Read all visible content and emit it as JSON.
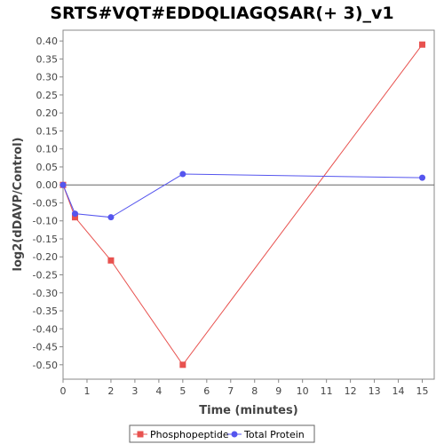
{
  "chart_data": {
    "type": "line",
    "title": "SRTS#VQT#EDDQLIAGQSAR(+ 3)_v1",
    "xlabel": "Time (minutes)",
    "ylabel": "log2(dDAVP/Control)",
    "xlim": [
      0,
      15.5
    ],
    "ylim": [
      -0.54,
      0.43
    ],
    "xticks": [
      0,
      1,
      2,
      3,
      4,
      5,
      6,
      7,
      8,
      9,
      10,
      11,
      12,
      13,
      14,
      15
    ],
    "yticks": [
      0.4,
      0.35,
      0.3,
      0.25,
      0.2,
      0.15,
      0.1,
      0.05,
      0.0,
      -0.05,
      -0.1,
      -0.15,
      -0.2,
      -0.25,
      -0.3,
      -0.35,
      -0.4,
      -0.45,
      -0.5
    ],
    "grid": false,
    "legend_position": "bottom",
    "series": [
      {
        "name": "Phosphopeptide",
        "color": "#e8524f",
        "marker": "square",
        "x": [
          0,
          0.5,
          2,
          5,
          15
        ],
        "y": [
          0.0,
          -0.09,
          -0.21,
          -0.5,
          0.39
        ]
      },
      {
        "name": "Total Protein",
        "color": "#5555ee",
        "marker": "circle",
        "x": [
          0,
          0.5,
          2,
          5,
          15
        ],
        "y": [
          0.0,
          -0.08,
          -0.09,
          0.03,
          0.02
        ]
      }
    ]
  }
}
